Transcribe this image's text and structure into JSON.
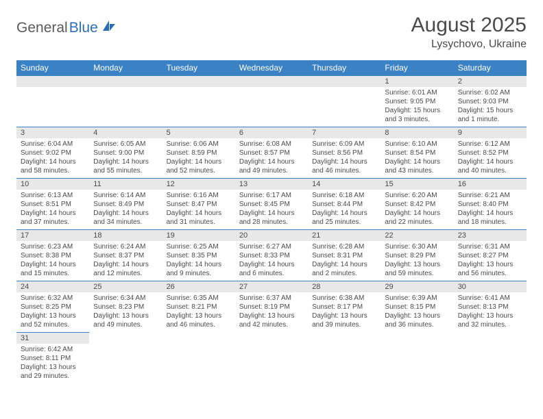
{
  "logo": {
    "text_general": "General",
    "text_blue": "Blue"
  },
  "title": "August 2025",
  "location": "Lysychovo, Ukraine",
  "colors": {
    "header_bg": "#3b82c4",
    "header_text": "#ffffff",
    "daynum_bg": "#e8e8e8",
    "border": "#3b82c4",
    "text": "#4a4a4a",
    "logo_general": "#5a5a5a",
    "logo_blue": "#2a6fb5"
  },
  "weekdays": [
    "Sunday",
    "Monday",
    "Tuesday",
    "Wednesday",
    "Thursday",
    "Friday",
    "Saturday"
  ],
  "weeks": [
    [
      null,
      null,
      null,
      null,
      null,
      {
        "day": "1",
        "sunrise": "6:01 AM",
        "sunset": "9:05 PM",
        "daylight": "15 hours and 3 minutes."
      },
      {
        "day": "2",
        "sunrise": "6:02 AM",
        "sunset": "9:03 PM",
        "daylight": "15 hours and 1 minute."
      }
    ],
    [
      {
        "day": "3",
        "sunrise": "6:04 AM",
        "sunset": "9:02 PM",
        "daylight": "14 hours and 58 minutes."
      },
      {
        "day": "4",
        "sunrise": "6:05 AM",
        "sunset": "9:00 PM",
        "daylight": "14 hours and 55 minutes."
      },
      {
        "day": "5",
        "sunrise": "6:06 AM",
        "sunset": "8:59 PM",
        "daylight": "14 hours and 52 minutes."
      },
      {
        "day": "6",
        "sunrise": "6:08 AM",
        "sunset": "8:57 PM",
        "daylight": "14 hours and 49 minutes."
      },
      {
        "day": "7",
        "sunrise": "6:09 AM",
        "sunset": "8:56 PM",
        "daylight": "14 hours and 46 minutes."
      },
      {
        "day": "8",
        "sunrise": "6:10 AM",
        "sunset": "8:54 PM",
        "daylight": "14 hours and 43 minutes."
      },
      {
        "day": "9",
        "sunrise": "6:12 AM",
        "sunset": "8:52 PM",
        "daylight": "14 hours and 40 minutes."
      }
    ],
    [
      {
        "day": "10",
        "sunrise": "6:13 AM",
        "sunset": "8:51 PM",
        "daylight": "14 hours and 37 minutes."
      },
      {
        "day": "11",
        "sunrise": "6:14 AM",
        "sunset": "8:49 PM",
        "daylight": "14 hours and 34 minutes."
      },
      {
        "day": "12",
        "sunrise": "6:16 AM",
        "sunset": "8:47 PM",
        "daylight": "14 hours and 31 minutes."
      },
      {
        "day": "13",
        "sunrise": "6:17 AM",
        "sunset": "8:45 PM",
        "daylight": "14 hours and 28 minutes."
      },
      {
        "day": "14",
        "sunrise": "6:18 AM",
        "sunset": "8:44 PM",
        "daylight": "14 hours and 25 minutes."
      },
      {
        "day": "15",
        "sunrise": "6:20 AM",
        "sunset": "8:42 PM",
        "daylight": "14 hours and 22 minutes."
      },
      {
        "day": "16",
        "sunrise": "6:21 AM",
        "sunset": "8:40 PM",
        "daylight": "14 hours and 18 minutes."
      }
    ],
    [
      {
        "day": "17",
        "sunrise": "6:23 AM",
        "sunset": "8:38 PM",
        "daylight": "14 hours and 15 minutes."
      },
      {
        "day": "18",
        "sunrise": "6:24 AM",
        "sunset": "8:37 PM",
        "daylight": "14 hours and 12 minutes."
      },
      {
        "day": "19",
        "sunrise": "6:25 AM",
        "sunset": "8:35 PM",
        "daylight": "14 hours and 9 minutes."
      },
      {
        "day": "20",
        "sunrise": "6:27 AM",
        "sunset": "8:33 PM",
        "daylight": "14 hours and 6 minutes."
      },
      {
        "day": "21",
        "sunrise": "6:28 AM",
        "sunset": "8:31 PM",
        "daylight": "14 hours and 2 minutes."
      },
      {
        "day": "22",
        "sunrise": "6:30 AM",
        "sunset": "8:29 PM",
        "daylight": "13 hours and 59 minutes."
      },
      {
        "day": "23",
        "sunrise": "6:31 AM",
        "sunset": "8:27 PM",
        "daylight": "13 hours and 56 minutes."
      }
    ],
    [
      {
        "day": "24",
        "sunrise": "6:32 AM",
        "sunset": "8:25 PM",
        "daylight": "13 hours and 52 minutes."
      },
      {
        "day": "25",
        "sunrise": "6:34 AM",
        "sunset": "8:23 PM",
        "daylight": "13 hours and 49 minutes."
      },
      {
        "day": "26",
        "sunrise": "6:35 AM",
        "sunset": "8:21 PM",
        "daylight": "13 hours and 46 minutes."
      },
      {
        "day": "27",
        "sunrise": "6:37 AM",
        "sunset": "8:19 PM",
        "daylight": "13 hours and 42 minutes."
      },
      {
        "day": "28",
        "sunrise": "6:38 AM",
        "sunset": "8:17 PM",
        "daylight": "13 hours and 39 minutes."
      },
      {
        "day": "29",
        "sunrise": "6:39 AM",
        "sunset": "8:15 PM",
        "daylight": "13 hours and 36 minutes."
      },
      {
        "day": "30",
        "sunrise": "6:41 AM",
        "sunset": "8:13 PM",
        "daylight": "13 hours and 32 minutes."
      }
    ],
    [
      {
        "day": "31",
        "sunrise": "6:42 AM",
        "sunset": "8:11 PM",
        "daylight": "13 hours and 29 minutes."
      },
      null,
      null,
      null,
      null,
      null,
      null
    ]
  ],
  "labels": {
    "sunrise_prefix": "Sunrise: ",
    "sunset_prefix": "Sunset: ",
    "daylight_prefix": "Daylight: "
  }
}
